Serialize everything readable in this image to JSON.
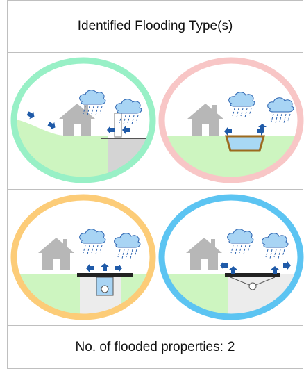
{
  "header": {
    "title": "Identified Flooding Type(s)"
  },
  "footer": {
    "label": "No. of flooded properties:",
    "count": 2
  }
}
